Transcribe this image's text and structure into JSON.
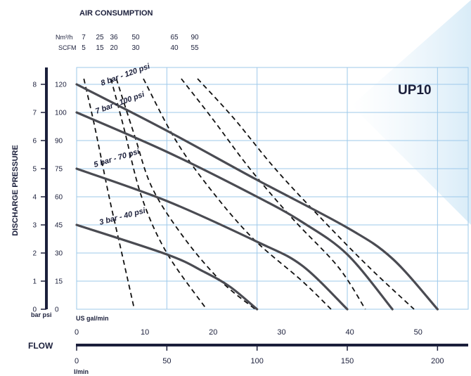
{
  "chart_data": {
    "type": "line",
    "model": "UP10",
    "title": "AIR CONSUMPTION",
    "ylabel": "DISCHARGE PRESSURE",
    "xlabel": "FLOW",
    "y_units": "bar psi",
    "x_top_units": "US gal/min",
    "x_bottom_units": "l/min",
    "xlim_lmin": [
      0,
      217
    ],
    "ylim_bar": [
      0,
      8.6
    ],
    "grid": true,
    "air_units": [
      {
        "name": "Nm³/h",
        "ticks": [
          "7",
          "25",
          "36",
          "50",
          "65",
          "90"
        ]
      },
      {
        "name": "SCFM",
        "ticks": [
          "5",
          "15",
          "20",
          "30",
          "40",
          "55"
        ]
      }
    ],
    "y_ticks_bar": [
      0,
      1,
      2,
      3,
      4,
      5,
      6,
      7,
      8
    ],
    "y_ticks_psi": [
      0,
      15,
      30,
      45,
      60,
      75,
      90,
      100,
      120
    ],
    "x_ticks_gpm": [
      0,
      10,
      20,
      30,
      40,
      50
    ],
    "x_ticks_lmin": [
      0,
      50,
      100,
      150,
      200
    ],
    "series": [
      {
        "name": "8 bar - 120 psi",
        "points": [
          [
            0,
            8.0
          ],
          [
            50,
            6.35
          ],
          [
            100,
            4.6
          ],
          [
            150,
            2.9
          ],
          [
            175,
            1.8
          ],
          [
            200,
            0
          ]
        ]
      },
      {
        "name": "7 bar - 100 psi",
        "points": [
          [
            0,
            7.0
          ],
          [
            50,
            5.6
          ],
          [
            100,
            4.0
          ],
          [
            125,
            3.1
          ],
          [
            150,
            1.95
          ],
          [
            175,
            0
          ]
        ]
      },
      {
        "name": "5 bar - 70 psi",
        "points": [
          [
            0,
            5.0
          ],
          [
            50,
            3.85
          ],
          [
            100,
            2.4
          ],
          [
            125,
            1.55
          ],
          [
            150,
            0
          ]
        ]
      },
      {
        "name": "3 bar - 40 psi",
        "points": [
          [
            0,
            3.0
          ],
          [
            50,
            1.95
          ],
          [
            70,
            1.35
          ],
          [
            85,
            0.8
          ],
          [
            100,
            0
          ]
        ]
      }
    ],
    "air_curves": [
      {
        "name": "7",
        "points": [
          [
            4,
            8.2
          ],
          [
            10,
            6.5
          ],
          [
            18,
            4.0
          ],
          [
            25,
            2.0
          ],
          [
            32,
            0
          ]
        ]
      },
      {
        "name": "25",
        "points": [
          [
            19,
            8.2
          ],
          [
            26,
            6.5
          ],
          [
            36,
            4.0
          ],
          [
            50,
            2.0
          ],
          [
            72,
            0
          ]
        ]
      },
      {
        "name": "36",
        "points": [
          [
            22,
            8.2
          ],
          [
            32,
            6.2
          ],
          [
            42,
            4.3
          ],
          [
            60,
            2.5
          ],
          [
            80,
            1.0
          ],
          [
            99,
            0
          ]
        ]
      },
      {
        "name": "50",
        "points": [
          [
            37,
            8.2
          ],
          [
            55,
            6.0
          ],
          [
            75,
            4.2
          ],
          [
            98,
            2.5
          ],
          [
            125,
            1.0
          ],
          [
            141,
            0
          ]
        ]
      },
      {
        "name": "65",
        "points": [
          [
            58,
            8.2
          ],
          [
            75,
            6.8
          ],
          [
            96,
            5.0
          ],
          [
            120,
            3.2
          ],
          [
            145,
            1.5
          ],
          [
            160,
            0
          ]
        ]
      },
      {
        "name": "90",
        "points": [
          [
            67,
            8.2
          ],
          [
            87,
            6.8
          ],
          [
            110,
            5.0
          ],
          [
            136,
            3.2
          ],
          [
            162,
            1.5
          ],
          [
            187,
            0
          ]
        ]
      }
    ]
  }
}
